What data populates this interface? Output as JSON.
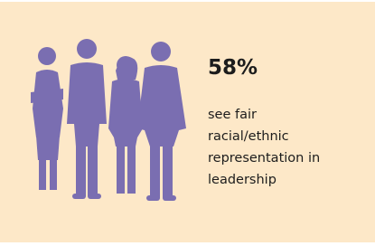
{
  "stat": "58%",
  "caption_lines": [
    "see fair",
    "racial/ethnic",
    "representation in",
    "leadership"
  ]
}
